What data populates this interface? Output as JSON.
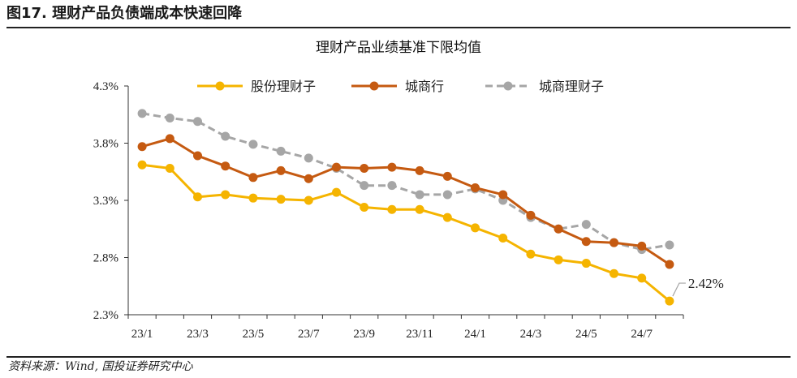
{
  "figure_title": "图17. 理财产品负债端成本快速回降",
  "source": "资料来源：Wind, 国投证券研究中心",
  "chart_data": {
    "type": "line",
    "title": "理财产品业绩基准下限均值",
    "xlabel": "",
    "ylabel": "",
    "ylim": [
      2.3,
      4.3
    ],
    "yticks": [
      "4.3%",
      "3.8%",
      "3.3%",
      "2.8%",
      "2.3%"
    ],
    "ytick_values": [
      4.3,
      3.8,
      3.3,
      2.8,
      2.3
    ],
    "x": [
      "23/1",
      "23/2",
      "23/3",
      "23/4",
      "23/5",
      "23/6",
      "23/7",
      "23/8",
      "23/9",
      "23/10",
      "23/11",
      "23/12",
      "24/1",
      "24/2",
      "24/3",
      "24/4",
      "24/5",
      "24/6",
      "24/7",
      "24/8"
    ],
    "xtick_labels": [
      "23/1",
      "23/3",
      "23/5",
      "23/7",
      "23/9",
      "23/11",
      "24/1",
      "24/3",
      "24/5",
      "24/7"
    ],
    "legend_position": "top",
    "series": [
      {
        "name": "股份理财子",
        "color": "#F5B400",
        "style": "solid",
        "values": [
          3.61,
          3.58,
          3.33,
          3.35,
          3.32,
          3.31,
          3.3,
          3.37,
          3.24,
          3.22,
          3.22,
          3.15,
          3.06,
          2.97,
          2.83,
          2.78,
          2.75,
          2.66,
          2.62,
          2.42
        ]
      },
      {
        "name": "城商行",
        "color": "#C55A11",
        "style": "solid",
        "values": [
          3.77,
          3.84,
          3.69,
          3.6,
          3.5,
          3.56,
          3.49,
          3.59,
          3.58,
          3.59,
          3.56,
          3.51,
          3.41,
          3.35,
          3.17,
          3.05,
          2.94,
          2.93,
          2.9,
          2.74
        ]
      },
      {
        "name": "城商理财子",
        "color": "#A6A6A6",
        "style": "dashed",
        "values": [
          4.06,
          4.02,
          3.99,
          3.86,
          3.79,
          3.73,
          3.67,
          3.58,
          3.43,
          3.43,
          3.35,
          3.35,
          3.4,
          3.3,
          3.15,
          3.05,
          3.09,
          2.93,
          2.87,
          2.91
        ]
      }
    ],
    "annotations": [
      {
        "text": "2.42%",
        "series": "股份理财子",
        "index": 19
      }
    ]
  }
}
